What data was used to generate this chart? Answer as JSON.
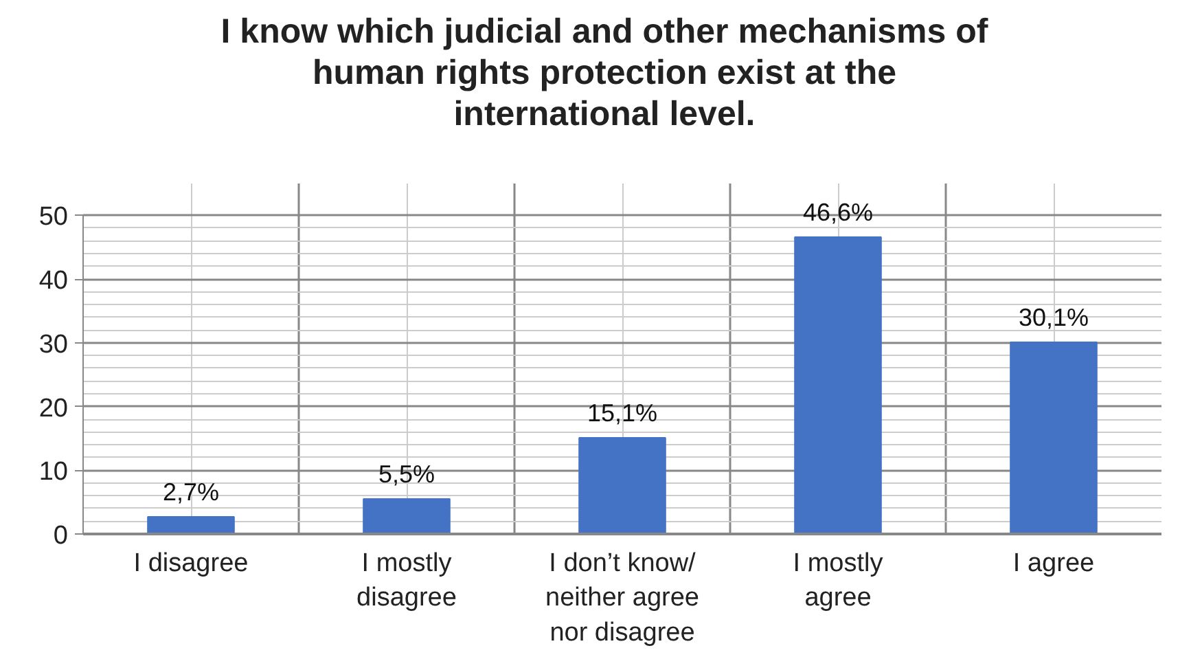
{
  "chart_data": {
    "type": "bar",
    "title": "I know which judicial and other mechanisms of human rights protection exist at the international level.",
    "categories": [
      "I disagree",
      "I mostly disagree",
      "I don’t know/ neither agree nor disagree",
      "I mostly agree",
      "I agree"
    ],
    "values": [
      2.7,
      5.5,
      15.1,
      46.6,
      30.1
    ],
    "value_labels": [
      "2,7%",
      "5,5%",
      "15,1%",
      "46,6%",
      "30,1%"
    ],
    "color": "#4472c4",
    "ylim": [
      0,
      50
    ],
    "yticks": [
      0,
      10,
      20,
      30,
      40,
      50
    ],
    "grid": true
  }
}
